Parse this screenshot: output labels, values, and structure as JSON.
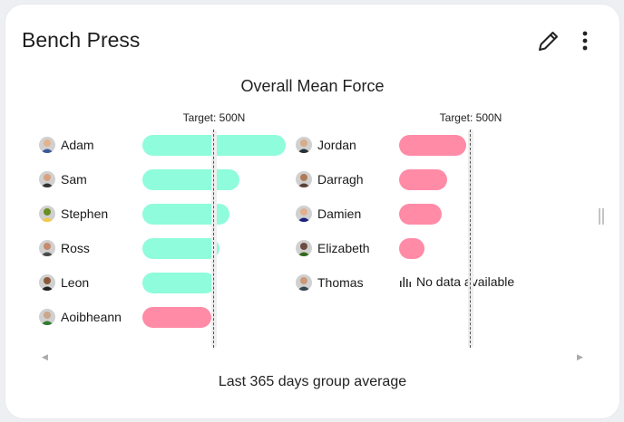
{
  "card": {
    "title": "Bench Press",
    "chart_title": "Overall Mean Force",
    "footer": "Last 365 days group average"
  },
  "colors": {
    "above_target": "#8ffcdb",
    "below_target": "#ff8ba7",
    "target_line": "#555555"
  },
  "icons": {
    "edit": "pencil-icon",
    "more": "more-vert-icon",
    "no_data": "bar-chart-icon"
  },
  "no_data_text": "No data available",
  "chart_data": {
    "type": "bar",
    "orientation": "horizontal",
    "target": 500,
    "target_label": "Target: 500N",
    "panels": [
      {
        "xlim": [
          0,
          1000
        ],
        "athletes": [
          {
            "name": "Adam",
            "value": 1000
          },
          {
            "name": "Sam",
            "value": 680
          },
          {
            "name": "Stephen",
            "value": 610
          },
          {
            "name": "Ross",
            "value": 540
          },
          {
            "name": "Leon",
            "value": 510
          },
          {
            "name": "Aoibheann",
            "value": 480
          }
        ]
      },
      {
        "xlim": [
          0,
          1000
        ],
        "athletes": [
          {
            "name": "Jordan",
            "value": 470
          },
          {
            "name": "Darragh",
            "value": 335
          },
          {
            "name": "Damien",
            "value": 300
          },
          {
            "name": "Elizabeth",
            "value": 180
          },
          {
            "name": "Thomas",
            "value": null
          }
        ]
      }
    ]
  }
}
